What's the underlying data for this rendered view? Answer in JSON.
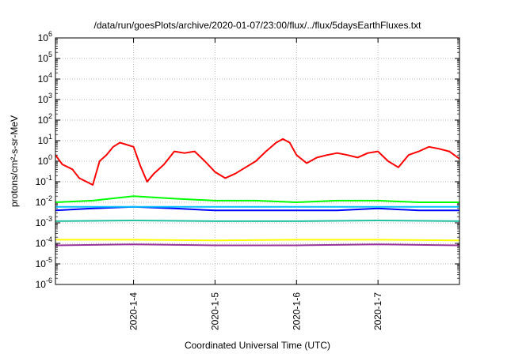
{
  "chart_data": {
    "type": "line",
    "title": "/data/run/goesPlots/archive/2020-01-07/23:00/flux/../flux/5daysEarthFluxes.txt",
    "xlabel": "Coordinated Universal Time (UTC)",
    "ylabel": "protons/cm²-s-sr-MeV",
    "y_scale": "log",
    "ylim": [
      1e-06,
      1000000.0
    ],
    "y_ticks": [
      {
        "exp": "-6",
        "value": 1e-06
      },
      {
        "exp": "-5",
        "value": 1e-05
      },
      {
        "exp": "-4",
        "value": 0.0001
      },
      {
        "exp": "-3",
        "value": 0.001
      },
      {
        "exp": "-2",
        "value": 0.01
      },
      {
        "exp": "-1",
        "value": 0.1
      },
      {
        "exp": "0",
        "value": 1
      },
      {
        "exp": "1",
        "value": 10
      },
      {
        "exp": "2",
        "value": 100
      },
      {
        "exp": "3",
        "value": 1000
      },
      {
        "exp": "4",
        "value": 10000
      },
      {
        "exp": "5",
        "value": 100000
      },
      {
        "exp": "6",
        "value": 1000000
      }
    ],
    "xlim": [
      "2020-01-03 01:00",
      "2020-01-08 00:00"
    ],
    "x_ticks": [
      "2020-1-4",
      "2020-1-5",
      "2020-1-6",
      "2020-1-7"
    ],
    "grid": true,
    "legend": "none",
    "series": [
      {
        "color": "#ff0000",
        "x": [
          "2020-01-03 01:00",
          "2020-01-03 03:00",
          "2020-01-03 06:00",
          "2020-01-03 08:00",
          "2020-01-03 12:00",
          "2020-01-03 14:00",
          "2020-01-03 16:00",
          "2020-01-03 18:00",
          "2020-01-03 20:00",
          "2020-01-04 00:00",
          "2020-01-04 02:00",
          "2020-01-04 04:00",
          "2020-01-04 06:00",
          "2020-01-04 09:00",
          "2020-01-04 12:00",
          "2020-01-04 15:00",
          "2020-01-04 18:00",
          "2020-01-04 21:00",
          "2020-01-05 00:00",
          "2020-01-05 03:00",
          "2020-01-05 06:00",
          "2020-01-05 09:00",
          "2020-01-05 12:00",
          "2020-01-05 15:00",
          "2020-01-05 18:00",
          "2020-01-05 20:00",
          "2020-01-05 22:00",
          "2020-01-06 00:00",
          "2020-01-06 03:00",
          "2020-01-06 06:00",
          "2020-01-06 09:00",
          "2020-01-06 12:00",
          "2020-01-06 15:00",
          "2020-01-06 18:00",
          "2020-01-06 21:00",
          "2020-01-07 00:00",
          "2020-01-07 03:00",
          "2020-01-07 06:00",
          "2020-01-07 09:00",
          "2020-01-07 12:00",
          "2020-01-07 15:00",
          "2020-01-07 18:00",
          "2020-01-07 21:00",
          "2020-01-08 00:00"
        ],
        "values": [
          2,
          0.7,
          0.4,
          0.15,
          0.07,
          1.0,
          2.0,
          5.0,
          8.0,
          5.0,
          0.6,
          0.1,
          0.25,
          0.7,
          3.0,
          2.5,
          3.0,
          1.0,
          0.3,
          0.15,
          0.25,
          0.5,
          1.0,
          3.0,
          8.0,
          12.0,
          8.0,
          2.0,
          0.8,
          1.5,
          2.0,
          2.5,
          2.0,
          1.5,
          2.5,
          3.0,
          1.0,
          0.5,
          2.0,
          3.0,
          5.0,
          4.0,
          3.0,
          1.3
        ]
      },
      {
        "color": "#00ff00",
        "x": [
          "2020-01-03 01:00",
          "2020-01-03 12:00",
          "2020-01-04 00:00",
          "2020-01-04 12:00",
          "2020-01-05 00:00",
          "2020-01-05 12:00",
          "2020-01-06 00:00",
          "2020-01-06 12:00",
          "2020-01-07 00:00",
          "2020-01-07 12:00",
          "2020-01-08 00:00"
        ],
        "values": [
          0.01,
          0.012,
          0.02,
          0.015,
          0.012,
          0.012,
          0.01,
          0.012,
          0.012,
          0.01,
          0.01
        ]
      },
      {
        "color": "#0000ff",
        "x": [
          "2020-01-03 01:00",
          "2020-01-03 12:00",
          "2020-01-04 00:00",
          "2020-01-04 12:00",
          "2020-01-05 00:00",
          "2020-01-05 12:00",
          "2020-01-06 00:00",
          "2020-01-06 12:00",
          "2020-01-07 00:00",
          "2020-01-07 12:00",
          "2020-01-08 00:00"
        ],
        "values": [
          0.004,
          0.005,
          0.006,
          0.005,
          0.004,
          0.004,
          0.004,
          0.004,
          0.005,
          0.004,
          0.004
        ]
      },
      {
        "color": "#00bfff",
        "x": [
          "2020-01-03 01:00",
          "2020-01-04 00:00",
          "2020-01-05 00:00",
          "2020-01-06 00:00",
          "2020-01-07 00:00",
          "2020-01-08 00:00"
        ],
        "values": [
          0.006,
          0.006,
          0.006,
          0.006,
          0.006,
          0.006
        ]
      },
      {
        "color": "#20c0a0",
        "x": [
          "2020-01-03 01:00",
          "2020-01-04 00:00",
          "2020-01-05 00:00",
          "2020-01-06 00:00",
          "2020-01-07 00:00",
          "2020-01-08 00:00"
        ],
        "values": [
          0.0012,
          0.0013,
          0.0012,
          0.0012,
          0.0013,
          0.0012
        ]
      },
      {
        "color": "#ffff00",
        "x": [
          "2020-01-03 01:00",
          "2020-01-04 00:00",
          "2020-01-05 00:00",
          "2020-01-06 00:00",
          "2020-01-07 00:00",
          "2020-01-08 00:00"
        ],
        "values": [
          0.00015,
          0.00015,
          0.00014,
          0.00015,
          0.00015,
          0.00014
        ]
      },
      {
        "color": "#993399",
        "x": [
          "2020-01-03 01:00",
          "2020-01-04 00:00",
          "2020-01-05 00:00",
          "2020-01-06 00:00",
          "2020-01-07 00:00",
          "2020-01-08 00:00"
        ],
        "values": [
          8e-05,
          9e-05,
          8e-05,
          8e-05,
          9e-05,
          8e-05
        ]
      }
    ]
  }
}
